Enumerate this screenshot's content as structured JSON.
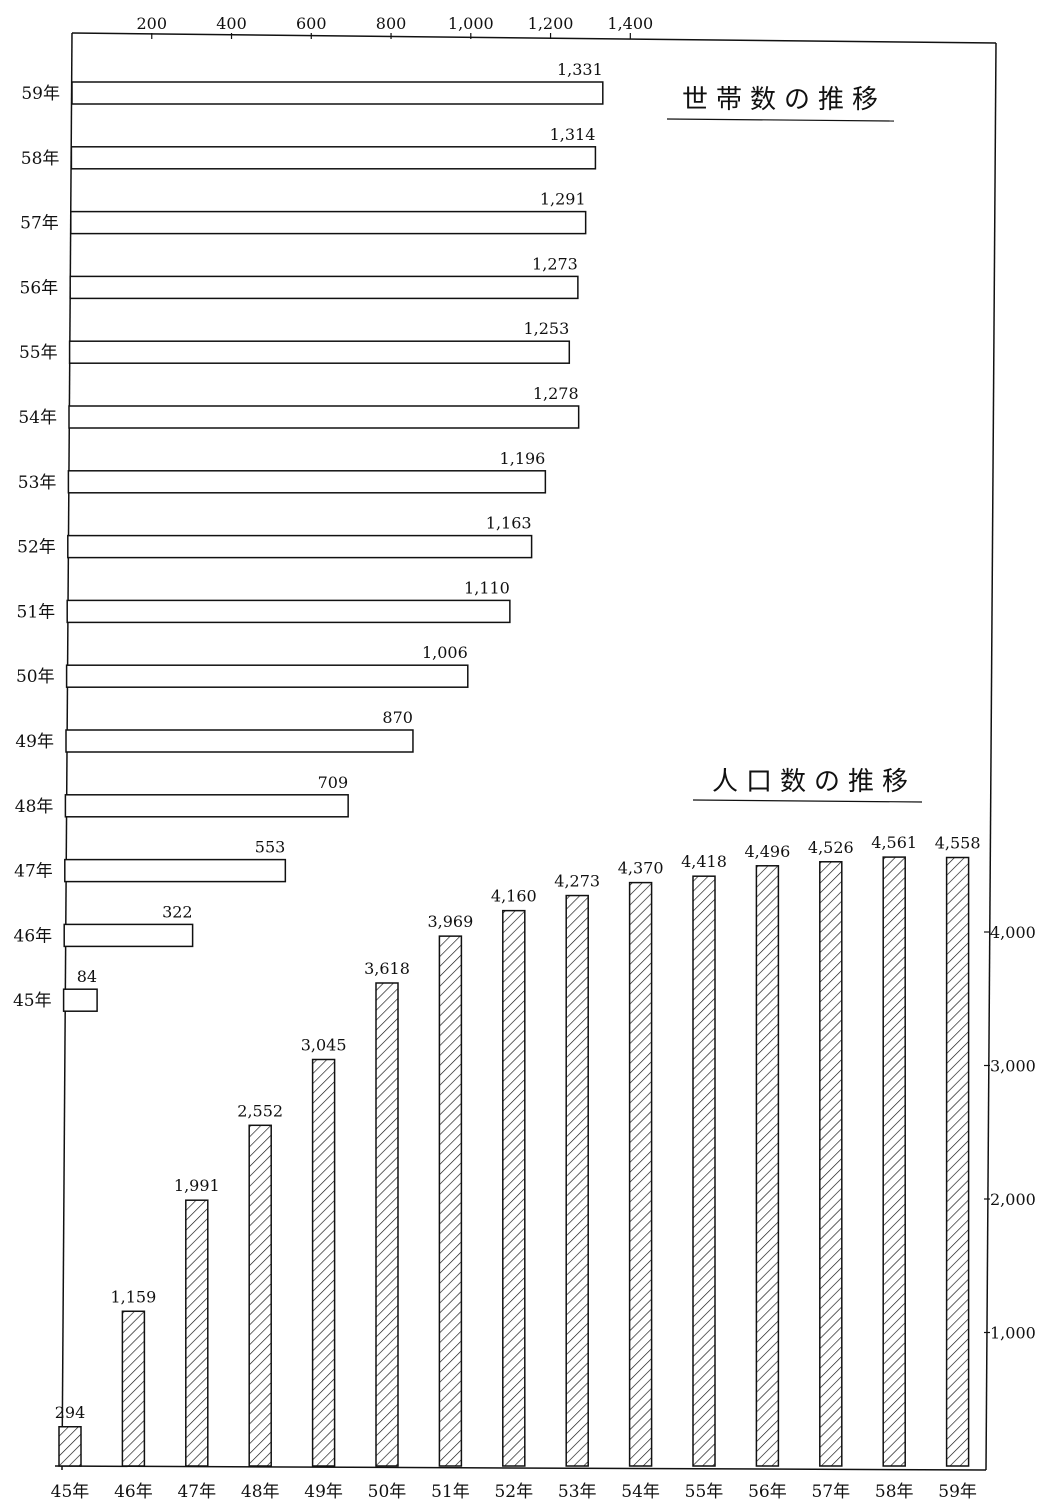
{
  "chart_data": [
    {
      "type": "bar",
      "orientation": "horizontal",
      "title": "世帯数の推移",
      "categories": [
        "59年",
        "58年",
        "57年",
        "56年",
        "55年",
        "54年",
        "53年",
        "52年",
        "51年",
        "50年",
        "49年",
        "48年",
        "47年",
        "46年",
        "45年"
      ],
      "values": [
        1331,
        1314,
        1291,
        1273,
        1253,
        1278,
        1196,
        1163,
        1110,
        1006,
        870,
        709,
        553,
        322,
        84
      ],
      "value_labels": [
        "1,331",
        "1,314",
        "1,291",
        "1,273",
        "1,253",
        "1,278",
        "1,196",
        "1,163",
        "1,110",
        "1,006",
        "870",
        "709",
        "553",
        "322",
        "84"
      ],
      "x_axis": {
        "position": "top",
        "ticks": [
          200,
          400,
          600,
          800,
          1000,
          1200,
          1400
        ],
        "tick_labels": [
          "200",
          "400",
          "600",
          "800",
          "1,000",
          "1,200",
          "1,400"
        ]
      },
      "xlim": [
        0,
        1400
      ],
      "bar_fill": "none",
      "grid": false
    },
    {
      "type": "bar",
      "orientation": "vertical",
      "title": "人口数の推移",
      "categories": [
        "45年",
        "46年",
        "47年",
        "48年",
        "49年",
        "50年",
        "51年",
        "52年",
        "53年",
        "54年",
        "55年",
        "56年",
        "57年",
        "58年",
        "59年"
      ],
      "values": [
        294,
        1159,
        1991,
        2552,
        3045,
        3618,
        3969,
        4160,
        4273,
        4370,
        4418,
        4496,
        4526,
        4561,
        4558
      ],
      "value_labels": [
        "294",
        "1,159",
        "1,991",
        "2,552",
        "3,045",
        "3,618",
        "3,969",
        "4,160",
        "4,273",
        "4,370",
        "4,418",
        "4,496",
        "4,526",
        "4,561",
        "4,558"
      ],
      "y_axis": {
        "position": "right",
        "ticks": [
          1000,
          2000,
          3000,
          4000
        ],
        "tick_labels": [
          "1,000",
          "2,000",
          "3,000",
          "4,000"
        ]
      },
      "ylim": [
        0,
        4600
      ],
      "bar_fill": "hatched",
      "grid": false
    }
  ],
  "colors": {
    "ink": "#111111",
    "background": "#ffffff"
  }
}
